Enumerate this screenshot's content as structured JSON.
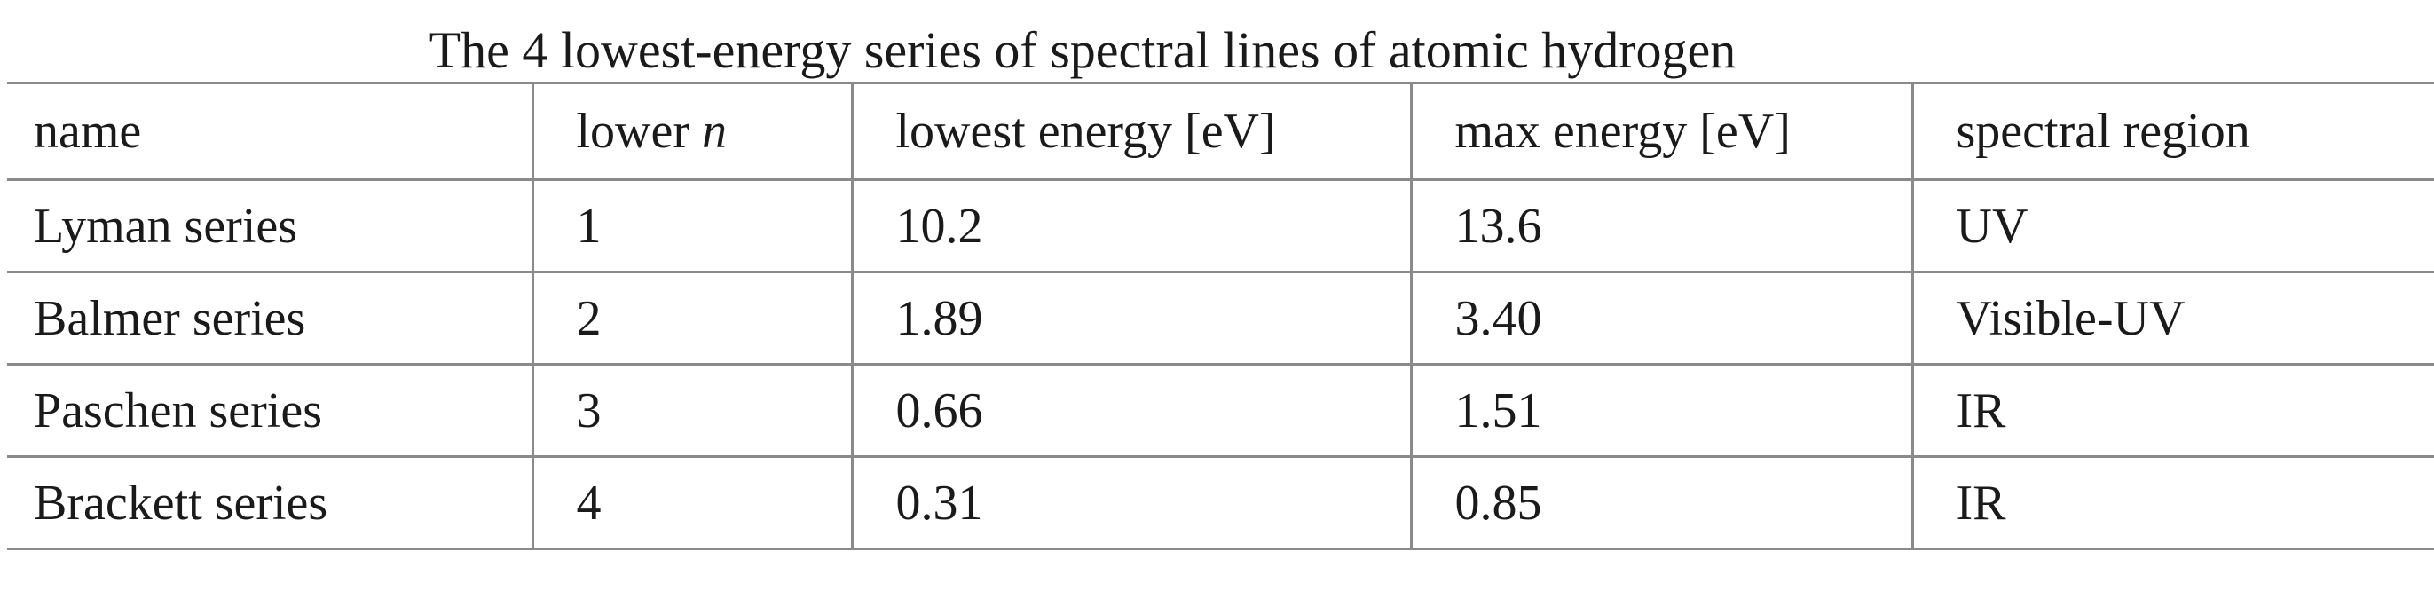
{
  "table": {
    "title": "The 4 lowest-energy series of spectral lines of atomic hydrogen",
    "header": [
      "name",
      {
        "text": "lower",
        "var": "n"
      },
      "lowest energy [eV]",
      "max energy [eV]",
      "spectral region"
    ],
    "rows": [
      [
        "Lyman series",
        "1",
        "10.2",
        "13.6",
        "UV"
      ],
      [
        "Balmer series",
        "2",
        "1.89",
        "3.40",
        "Visible-UV"
      ],
      [
        "Paschen series",
        "3",
        "0.66",
        "1.51",
        "IR"
      ],
      [
        "Brackett series",
        "4",
        "0.31",
        "0.85",
        "IR"
      ]
    ]
  }
}
